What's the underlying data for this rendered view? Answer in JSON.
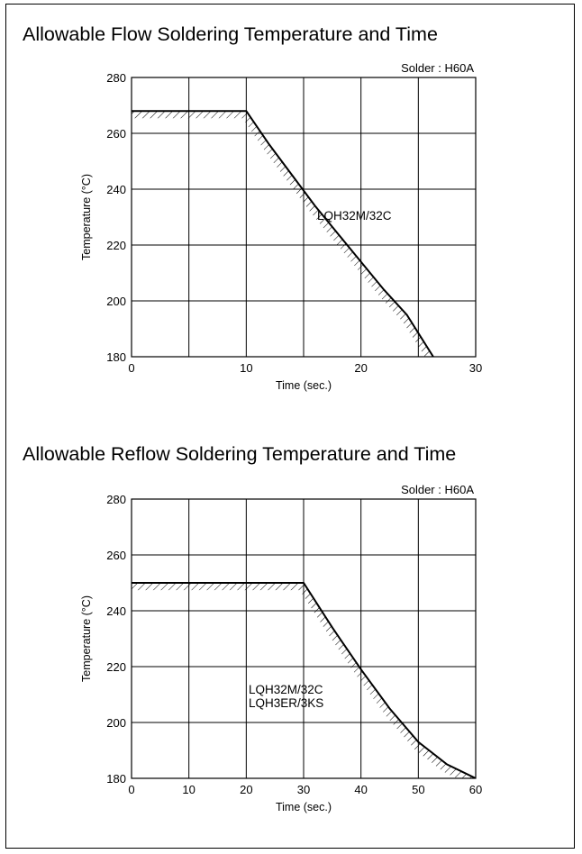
{
  "chart_data": [
    {
      "type": "line",
      "title": "Allowable Flow Soldering Temperature and Time",
      "note": "Solder : H60A",
      "xlabel": "Time (sec.)",
      "ylabel": "Temperature (°C)",
      "xlim": [
        0,
        30
      ],
      "ylim": [
        180,
        280
      ],
      "xticks": [
        "0",
        "10",
        "20",
        "30"
      ],
      "yticks": [
        "180",
        "200",
        "220",
        "240",
        "260",
        "280"
      ],
      "xgrid": [
        0,
        5,
        10,
        15,
        20,
        25,
        30
      ],
      "ygrid": [
        180,
        200,
        220,
        240,
        260,
        280
      ],
      "grid": true,
      "series": [
        {
          "name": "LQH32M/32C",
          "x": [
            0,
            10,
            12,
            14,
            16,
            18,
            20,
            22,
            24,
            26.3
          ],
          "y": [
            268,
            268,
            256,
            245,
            234,
            224,
            214,
            204,
            195,
            180
          ]
        }
      ],
      "hatched_band_width": 6
    },
    {
      "type": "line",
      "title": "Allowable Reflow Soldering Temperature and Time",
      "note": "Solder : H60A",
      "xlabel": "Time (sec.)",
      "ylabel": "Temperature (°C)",
      "xlim": [
        0,
        60
      ],
      "ylim": [
        180,
        280
      ],
      "xticks": [
        "0",
        "10",
        "20",
        "30",
        "40",
        "50",
        "60"
      ],
      "yticks": [
        "180",
        "200",
        "220",
        "240",
        "260",
        "280"
      ],
      "xgrid": [
        0,
        10,
        20,
        30,
        40,
        50,
        60
      ],
      "ygrid": [
        180,
        200,
        220,
        240,
        260,
        280
      ],
      "grid": true,
      "series": [
        {
          "name": "LQH32M/32C\nLQH3ER/3KS",
          "x": [
            0,
            30,
            35,
            40,
            45,
            50,
            55,
            60
          ],
          "y": [
            250,
            250,
            234,
            219,
            205,
            193,
            185,
            180
          ]
        }
      ],
      "hatched_band_width": 6
    }
  ]
}
